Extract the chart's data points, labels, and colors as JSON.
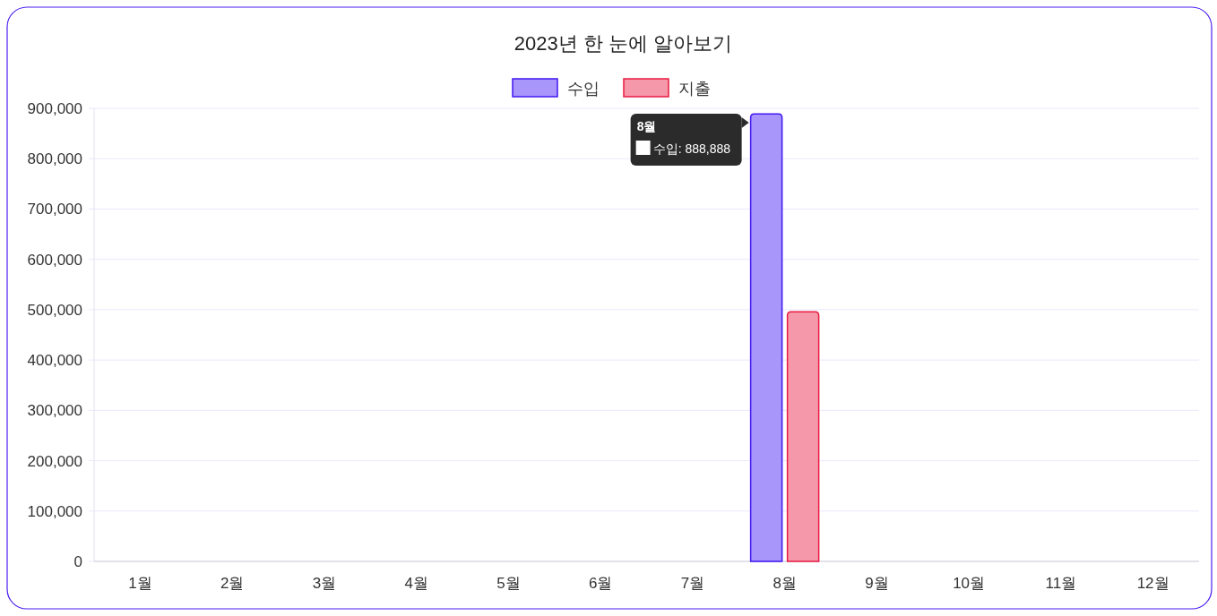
{
  "chart_data": {
    "type": "bar",
    "title": "2023년 한 눈에 알아보기",
    "categories": [
      "1월",
      "2월",
      "3월",
      "4월",
      "5월",
      "6월",
      "7월",
      "8월",
      "9월",
      "10월",
      "11월",
      "12월"
    ],
    "series": [
      {
        "name": "수입",
        "color": "#a996fa",
        "values": [
          null,
          null,
          null,
          null,
          null,
          null,
          null,
          888888,
          null,
          null,
          null,
          null
        ]
      },
      {
        "name": "지출",
        "color": "#f598aa",
        "values": [
          null,
          null,
          null,
          null,
          null,
          null,
          null,
          496000,
          null,
          null,
          null,
          null
        ]
      }
    ],
    "ylim": [
      0,
      900000
    ],
    "yticks": [
      0,
      {
        "value": 100000,
        "label": "100,000"
      },
      {
        "value": 200000,
        "label": "200,000"
      },
      {
        "value": 300000,
        "label": "300,000"
      },
      {
        "value": 400000,
        "label": "400,000"
      },
      {
        "value": 500000,
        "label": "500,000"
      },
      {
        "value": 600000,
        "label": "600,000"
      },
      {
        "value": 700000,
        "label": "700,000"
      },
      {
        "value": 800000,
        "label": "800,000"
      },
      {
        "value": 900000,
        "label": "900,000"
      }
    ],
    "grid": "y",
    "legend": "top",
    "annotations": [
      "8월",
      "수입: 888,888"
    ]
  }
}
